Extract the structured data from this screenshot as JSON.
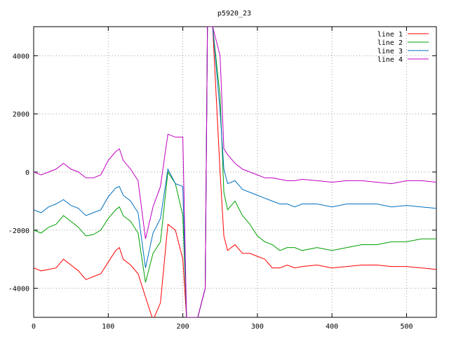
{
  "chart_data": {
    "type": "line",
    "title": "p5920_23",
    "xlabel": "",
    "ylabel": "",
    "xlim": [
      0,
      540
    ],
    "ylim": [
      -5000,
      5000
    ],
    "x_ticks": [
      0,
      100,
      200,
      300,
      400,
      500
    ],
    "y_ticks": [
      -4000,
      -2000,
      0,
      2000,
      4000
    ],
    "grid": true,
    "legend_position": "top-right",
    "series": [
      {
        "name": "line 1",
        "color": "#ff0000",
        "x": [
          0,
          10,
          20,
          30,
          40,
          50,
          60,
          70,
          80,
          90,
          100,
          110,
          115,
          120,
          130,
          140,
          150,
          160,
          170,
          180,
          190,
          200,
          205,
          210,
          220,
          230,
          233,
          240,
          250,
          255,
          260,
          270,
          280,
          290,
          300,
          310,
          320,
          330,
          340,
          350,
          360,
          380,
          400,
          420,
          440,
          460,
          480,
          500,
          520,
          540
        ],
        "y": [
          -3300,
          -3400,
          -3350,
          -3300,
          -3000,
          -3200,
          -3400,
          -3700,
          -3600,
          -3500,
          -3100,
          -2700,
          -2600,
          -3000,
          -3200,
          -3500,
          -4300,
          -5100,
          -4500,
          -1800,
          -2000,
          -3000,
          -5000,
          -5000,
          -5000,
          -4000,
          5000,
          5000,
          0,
          -2200,
          -2700,
          -2500,
          -2800,
          -2800,
          -2900,
          -3000,
          -3300,
          -3300,
          -3200,
          -3300,
          -3250,
          -3200,
          -3300,
          -3250,
          -3200,
          -3200,
          -3250,
          -3250,
          -3300,
          -3350
        ]
      },
      {
        "name": "line 2",
        "color": "#00a000",
        "x": [
          0,
          10,
          20,
          30,
          40,
          50,
          60,
          70,
          80,
          90,
          100,
          110,
          115,
          120,
          130,
          140,
          150,
          160,
          170,
          180,
          190,
          200,
          205,
          210,
          220,
          230,
          233,
          240,
          250,
          255,
          260,
          270,
          280,
          290,
          300,
          310,
          320,
          330,
          340,
          350,
          360,
          380,
          400,
          420,
          440,
          460,
          480,
          500,
          520,
          540
        ],
        "y": [
          -2000,
          -2100,
          -1900,
          -1800,
          -1500,
          -1700,
          -1900,
          -2200,
          -2150,
          -2000,
          -1600,
          -1300,
          -1200,
          -1500,
          -1700,
          -2100,
          -3800,
          -2800,
          -2400,
          0,
          -400,
          -1500,
          -5000,
          -5000,
          -5000,
          -4000,
          5000,
          5000,
          2600,
          -700,
          -1300,
          -1000,
          -1500,
          -1800,
          -2200,
          -2400,
          -2500,
          -2700,
          -2600,
          -2600,
          -2700,
          -2600,
          -2700,
          -2600,
          -2500,
          -2500,
          -2400,
          -2400,
          -2300,
          -2300
        ]
      },
      {
        "name": "line 3",
        "color": "#0070c0",
        "x": [
          0,
          10,
          20,
          30,
          40,
          50,
          60,
          70,
          80,
          90,
          100,
          110,
          115,
          120,
          130,
          140,
          150,
          160,
          170,
          180,
          190,
          200,
          205,
          210,
          220,
          230,
          233,
          240,
          250,
          255,
          260,
          270,
          280,
          290,
          300,
          310,
          320,
          330,
          340,
          350,
          360,
          380,
          400,
          420,
          440,
          460,
          480,
          500,
          520,
          540
        ],
        "y": [
          -1300,
          -1400,
          -1200,
          -1100,
          -950,
          -1150,
          -1250,
          -1500,
          -1400,
          -1300,
          -850,
          -550,
          -500,
          -800,
          -1000,
          -1400,
          -3300,
          -2100,
          -1600,
          100,
          -400,
          -500,
          -5000,
          -5000,
          -5000,
          -4000,
          5000,
          5000,
          2100,
          100,
          -400,
          -300,
          -600,
          -700,
          -800,
          -900,
          -1000,
          -1100,
          -1100,
          -1200,
          -1100,
          -1100,
          -1200,
          -1100,
          -1100,
          -1100,
          -1200,
          -1150,
          -1200,
          -1250
        ]
      },
      {
        "name": "line 4",
        "color": "#c000c0",
        "x": [
          0,
          10,
          20,
          30,
          40,
          50,
          60,
          70,
          80,
          90,
          100,
          110,
          115,
          120,
          130,
          140,
          150,
          160,
          170,
          180,
          190,
          200,
          205,
          210,
          220,
          230,
          233,
          240,
          250,
          255,
          260,
          270,
          280,
          290,
          300,
          310,
          320,
          330,
          340,
          350,
          360,
          380,
          400,
          420,
          440,
          460,
          480,
          500,
          520,
          540
        ],
        "y": [
          0,
          -100,
          0,
          100,
          300,
          100,
          0,
          -200,
          -200,
          -100,
          400,
          700,
          800,
          400,
          100,
          -300,
          -2300,
          -1200,
          -500,
          1300,
          1200,
          1200,
          -5000,
          -5000,
          -5000,
          -4000,
          5000,
          5000,
          4000,
          800,
          600,
          300,
          100,
          0,
          -100,
          -200,
          -200,
          -250,
          -300,
          -300,
          -250,
          -300,
          -350,
          -300,
          -300,
          -350,
          -400,
          -300,
          -300,
          -350
        ]
      }
    ]
  }
}
